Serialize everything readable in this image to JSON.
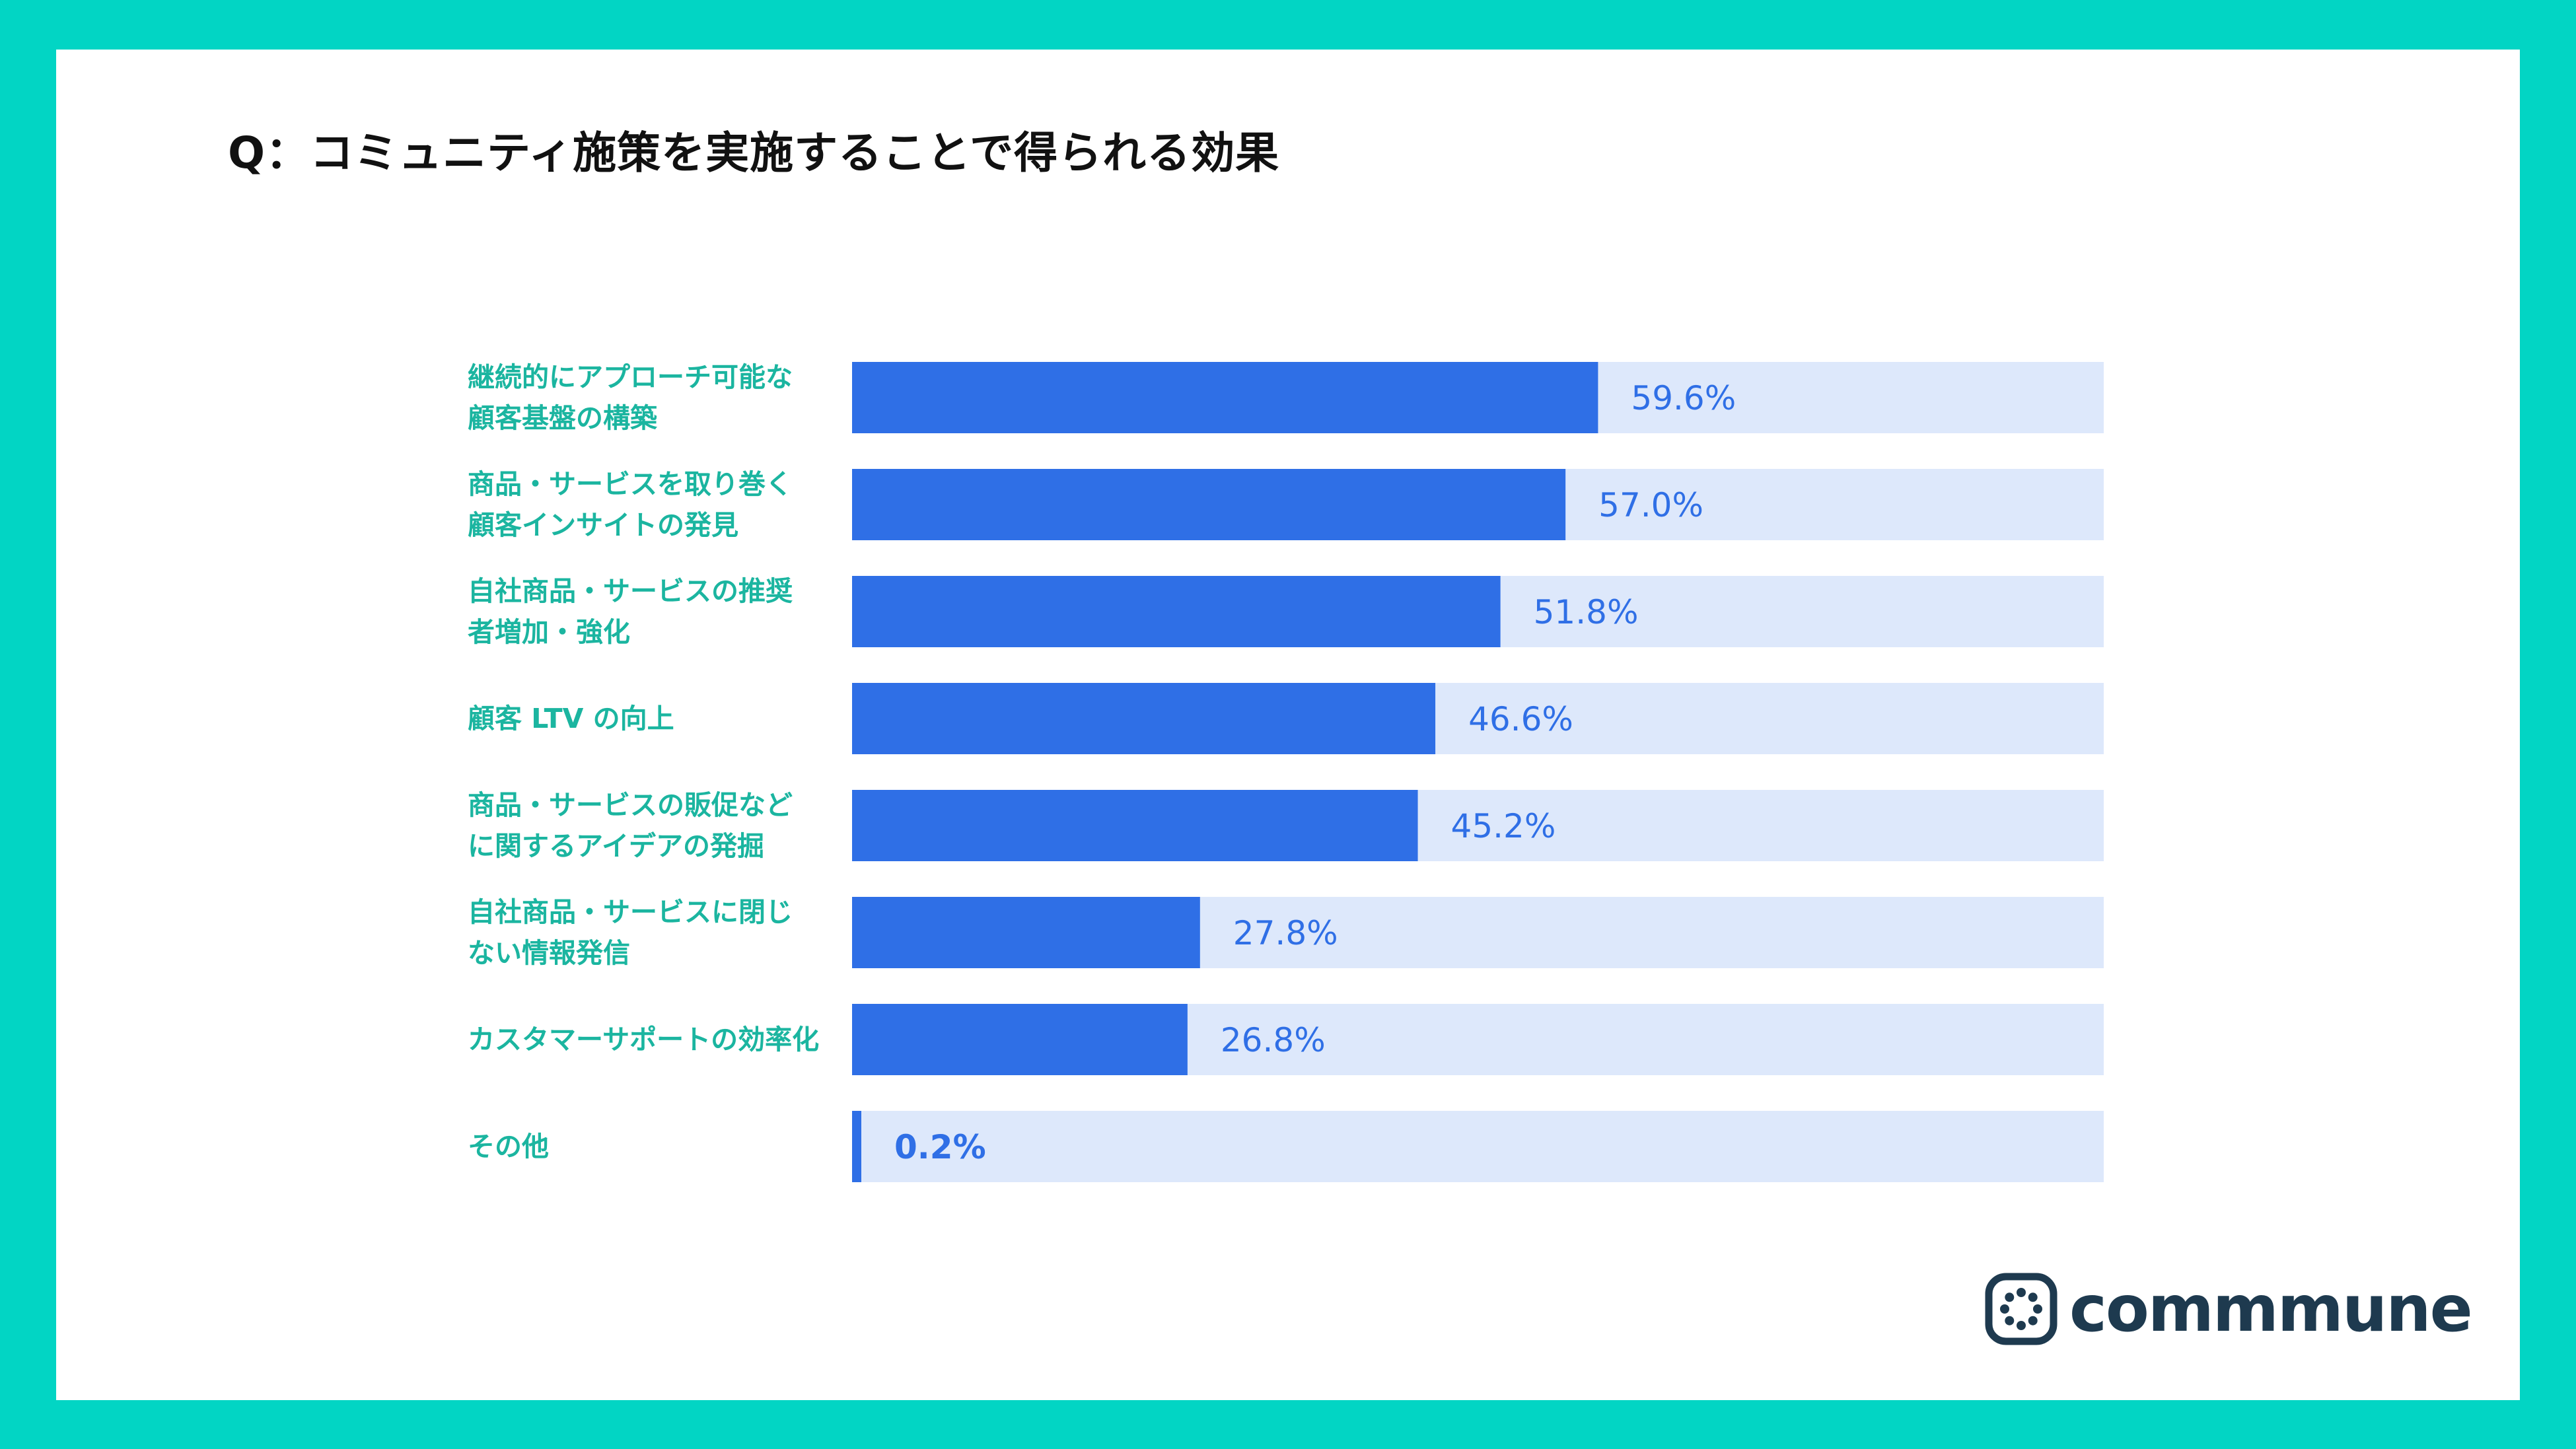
{
  "title": "Q：コミュニティ施策を実施することで得られる効果",
  "brand": {
    "name": "commmune",
    "logo_icon": "commmune-logo-icon",
    "text_color": "#1E3A4F"
  },
  "colors": {
    "frame": "#02D5C4",
    "bar": "#2F6FE6",
    "track": "#DDE8FB",
    "label": "#1BB5A0",
    "value": "#2F6FE6"
  },
  "chart_data": {
    "type": "bar",
    "orientation": "horizontal",
    "title": "Q：コミュニティ施策を実施することで得られる効果",
    "xlim": [
      0,
      100
    ],
    "unit": "%",
    "categories": [
      [
        "継続的にアプローチ可能な",
        "顧客基盤の構築"
      ],
      [
        "商品・サービスを取り巻く",
        "顧客インサイトの発見"
      ],
      [
        "自社商品・サービスの推奨",
        "者増加・強化"
      ],
      [
        "顧客 LTV の向上"
      ],
      [
        "商品・サービスの販促など",
        "に関するアイデアの発掘"
      ],
      [
        "自社商品・サービスに閉じ",
        "ない情報発信"
      ],
      [
        "カスタマーサポートの効率化"
      ],
      [
        "その他"
      ]
    ],
    "values": [
      59.6,
      57.0,
      51.8,
      46.6,
      45.2,
      27.8,
      26.8,
      0.2
    ],
    "value_labels": [
      "59.6%",
      "57.0%",
      "51.8%",
      "46.6%",
      "45.2%",
      "27.8%",
      "26.8%",
      "0.2%"
    ]
  }
}
